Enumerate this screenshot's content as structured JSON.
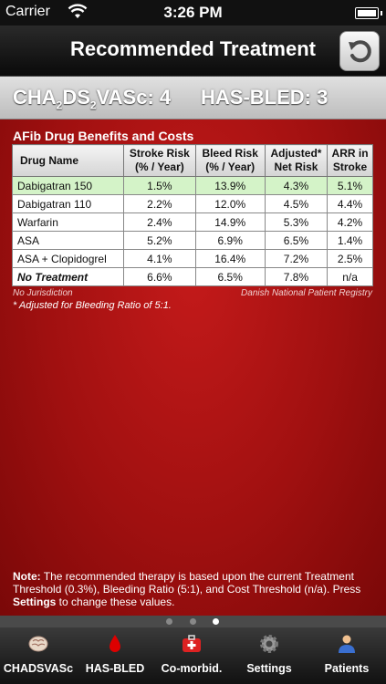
{
  "status": {
    "carrier": "Carrier",
    "time": "3:26 PM"
  },
  "nav": {
    "title": "Recommended Treatment"
  },
  "scores": {
    "chads_prefix": "CHA",
    "chads_sub1": "2",
    "chads_mid": "DS",
    "chads_sub2": "2",
    "chads_suffix": "VASc: 4",
    "hasbled": "HAS-BLED: 3"
  },
  "table": {
    "title": "AFib Drug Benefits and Costs",
    "headers": {
      "drug": "Drug Name",
      "stroke1": "Stroke Risk",
      "stroke2": "(% / Year)",
      "bleed1": "Bleed Risk",
      "bleed2": "(% / Year)",
      "net1": "Adjusted*",
      "net2": "Net Risk",
      "arr1": "ARR in",
      "arr2": "Stroke"
    },
    "rows": [
      {
        "name": "Dabigatran 150",
        "stroke": "1.5%",
        "bleed": "13.9%",
        "net": "4.3%",
        "arr": "5.1%"
      },
      {
        "name": "Dabigatran 110",
        "stroke": "2.2%",
        "bleed": "12.0%",
        "net": "4.5%",
        "arr": "4.4%"
      },
      {
        "name": "Warfarin",
        "stroke": "2.4%",
        "bleed": "14.9%",
        "net": "5.3%",
        "arr": "4.2%"
      },
      {
        "name": "ASA",
        "stroke": "5.2%",
        "bleed": "6.9%",
        "net": "6.5%",
        "arr": "1.4%"
      },
      {
        "name": "ASA + Clopidogrel",
        "stroke": "4.1%",
        "bleed": "16.4%",
        "net": "7.2%",
        "arr": "2.5%"
      },
      {
        "name": "No Treatment",
        "stroke": "6.6%",
        "bleed": "6.5%",
        "net": "7.8%",
        "arr": "n/a"
      }
    ],
    "jurisdiction": "No Jurisdiction",
    "registry": "Danish National Patient Registry",
    "adjust_note": "* Adjusted for Bleeding Ratio of 5:1."
  },
  "footnote": {
    "lead": "Note:",
    "text": " The recommended therapy is based upon the current Treatment Threshold (0.3%), Bleeding Ratio (5:1), and Cost Threshold (n/a). Press ",
    "settings_word": "Settings",
    "tail": " to change these values."
  },
  "pager": {
    "pages": 3,
    "current": 3
  },
  "tabs": [
    {
      "label": "CHADSVASc",
      "icon": "brain-icon"
    },
    {
      "label": "HAS-BLED",
      "icon": "blood-drop-icon"
    },
    {
      "label": "Co-morbid.",
      "icon": "first-aid-kit-icon"
    },
    {
      "label": "Settings",
      "icon": "gear-icon"
    },
    {
      "label": "Patients",
      "icon": "person-icon"
    }
  ],
  "colors": {
    "accent_red": "#a01010",
    "highlight_row": "#d4f3c8"
  }
}
